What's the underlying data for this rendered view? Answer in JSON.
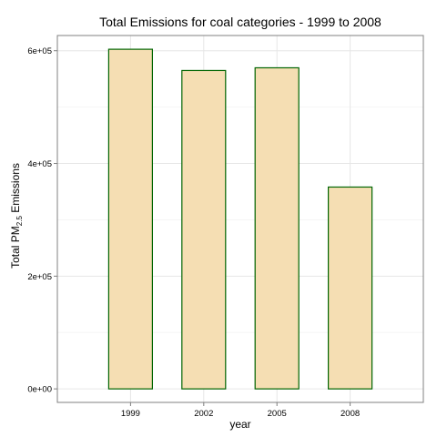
{
  "chart_data": {
    "type": "bar",
    "title": "Total Emissions for coal categories - 1999 to 2008",
    "xlabel": "year",
    "ylabel": {
      "prefix": "Total PM",
      "subscript": "2.5",
      "suffix": " Emissions"
    },
    "categories": [
      "1999",
      "2002",
      "2005",
      "2008"
    ],
    "values": [
      602600,
      564900,
      569700,
      358100
    ],
    "ylim": [
      -24000,
      627000
    ],
    "yticks": [
      0,
      200000,
      400000,
      600000
    ],
    "ytick_labels": [
      "0e+00",
      "2e+05",
      "4e+05",
      "6e+05"
    ],
    "grid": true,
    "colors": {
      "bar_fill": "#F5DEB3",
      "bar_stroke": "#006400",
      "grid_major": "#E6E6E6",
      "grid_minor": "#F5F5F5",
      "panel_border": "#808080"
    }
  }
}
